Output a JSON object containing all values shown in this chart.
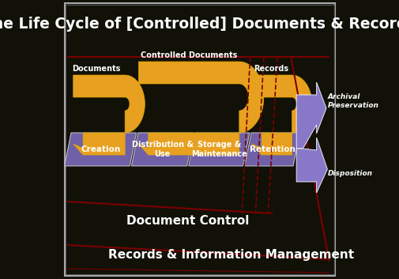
{
  "title": "The Life Cycle of [Controlled] Documents & Records",
  "bg_color": "#111108",
  "border_color": "#888888",
  "title_color": "#ffffff",
  "title_fontsize": 13.5,
  "orange_color": "#e8a020",
  "purple_box_color": "#7060a8",
  "purple_arrow_color": "#8878c8",
  "red_line_color": "#7a0000",
  "doc_control_label": "Document Control",
  "rim_label": "Records & Information Management",
  "archival_label": "Archival\nPreservation",
  "disposition_label": "Disposition",
  "phase_labels": [
    "Creation",
    "Distribution &\nUse",
    "Storage &\nMaintenance",
    "Retention"
  ],
  "arrow_labels": [
    "Documents",
    "Controlled Documents",
    "Records"
  ]
}
